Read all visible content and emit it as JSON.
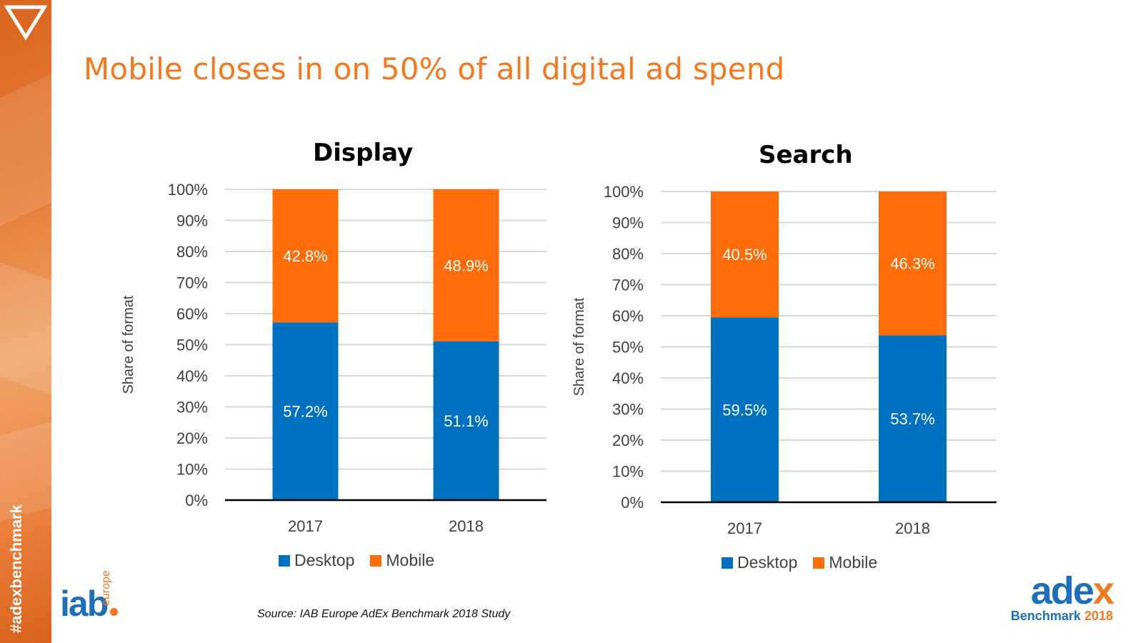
{
  "slide": {
    "title": "Mobile closes in on 50% of all digital ad spend",
    "hashtag": "#adexbenchmark",
    "source": "Source: IAB Europe AdEx Benchmark 2018 Study",
    "logo_left_main": "iab",
    "logo_left_sub": "europe",
    "logo_right_main": "adex",
    "logo_right_sub": "Benchmark",
    "logo_right_year": "2018"
  },
  "colors": {
    "desktop": "#0070c0",
    "mobile": "#ff6d0a",
    "accent": "#f5781e",
    "brand_blue": "#1e6fb8"
  },
  "icons": {
    "corner": "triangle-down-outline-icon"
  },
  "chart_data": [
    {
      "type": "bar",
      "stacked": true,
      "title": "Display",
      "ylabel": "Share of format",
      "xlabel": "",
      "ylim": [
        0,
        100
      ],
      "y_ticks": [
        "0%",
        "10%",
        "20%",
        "30%",
        "40%",
        "50%",
        "60%",
        "70%",
        "80%",
        "90%",
        "100%"
      ],
      "categories": [
        "2017",
        "2018"
      ],
      "series": [
        {
          "name": "Desktop",
          "values": [
            57.2,
            51.1
          ],
          "labels": [
            "57.2%",
            "51.1%"
          ],
          "color": "#0070c0"
        },
        {
          "name": "Mobile",
          "values": [
            42.8,
            48.9
          ],
          "labels": [
            "42.8%",
            "48.9%"
          ],
          "color": "#ff6d0a"
        }
      ],
      "grid": true,
      "legend": "bottom"
    },
    {
      "type": "bar",
      "stacked": true,
      "title": "Search",
      "ylabel": "Share of format",
      "xlabel": "",
      "ylim": [
        0,
        100
      ],
      "y_ticks": [
        "0%",
        "10%",
        "20%",
        "30%",
        "40%",
        "50%",
        "60%",
        "70%",
        "80%",
        "90%",
        "100%"
      ],
      "categories": [
        "2017",
        "2018"
      ],
      "series": [
        {
          "name": "Desktop",
          "values": [
            59.5,
            53.7
          ],
          "labels": [
            "59.5%",
            "53.7%"
          ],
          "color": "#0070c0"
        },
        {
          "name": "Mobile",
          "values": [
            40.5,
            46.3
          ],
          "labels": [
            "40.5%",
            "46.3%"
          ],
          "color": "#ff6d0a"
        }
      ],
      "grid": true,
      "legend": "bottom"
    }
  ]
}
